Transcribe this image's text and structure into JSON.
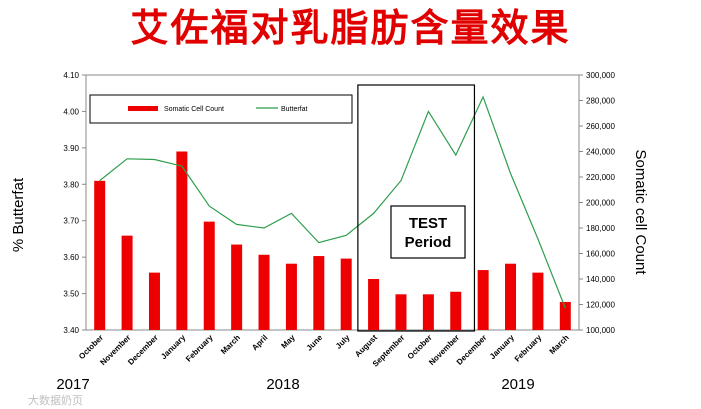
{
  "title": "艾佐福对乳脂肪含量效果",
  "watermark": "大数据奶页",
  "chart_data": {
    "type": "bar-line-combo",
    "categories": [
      "October",
      "November",
      "December",
      "January",
      "February",
      "March",
      "April",
      "May",
      "June",
      "July",
      "August",
      "September",
      "October",
      "November",
      "December",
      "January",
      "February",
      "March"
    ],
    "years": [
      {
        "label": "2017",
        "from_index": 0
      },
      {
        "label": "2018",
        "from_index": 3
      },
      {
        "label": "2019",
        "from_index": 15
      }
    ],
    "series": [
      {
        "name": "Somatic Cell Count",
        "type": "bar",
        "axis": "right",
        "color": "#ee0000",
        "values": [
          217000,
          174000,
          145000,
          240000,
          185000,
          167000,
          159000,
          152000,
          158000,
          156000,
          140000,
          128000,
          128000,
          130000,
          147000,
          152000,
          145000,
          122000
        ]
      },
      {
        "name": "Butterfat",
        "type": "line",
        "axis": "left",
        "color": "#2e9e4e",
        "values": [
          3.81,
          3.87,
          3.868,
          3.85,
          3.74,
          3.69,
          3.68,
          3.72,
          3.64,
          3.66,
          3.72,
          3.81,
          4.0,
          3.88,
          4.04,
          3.83,
          3.65,
          3.46
        ]
      }
    ],
    "left_axis": {
      "label": "% Butterfat",
      "min": 3.4,
      "max": 4.1,
      "step": 0.1,
      "ticks": [
        "3.40",
        "3.50",
        "3.60",
        "3.70",
        "3.80",
        "3.90",
        "4.00",
        "4.10"
      ]
    },
    "right_axis": {
      "label": "Somatic cell Count",
      "min": 100000,
      "max": 300000,
      "step": 20000,
      "ticks": [
        "100,000",
        "120,000",
        "140,000",
        "160,000",
        "180,000",
        "200,000",
        "220,000",
        "240,000",
        "260,000",
        "280,000",
        "300,000"
      ]
    },
    "annotation": {
      "label_line1": "TEST",
      "label_line2": "Period",
      "start_index": 10,
      "end_index": 13
    },
    "legend": {
      "placement": "top-left",
      "entries": [
        "Somatic Cell Count",
        "Butterfat"
      ]
    },
    "grid": false
  }
}
